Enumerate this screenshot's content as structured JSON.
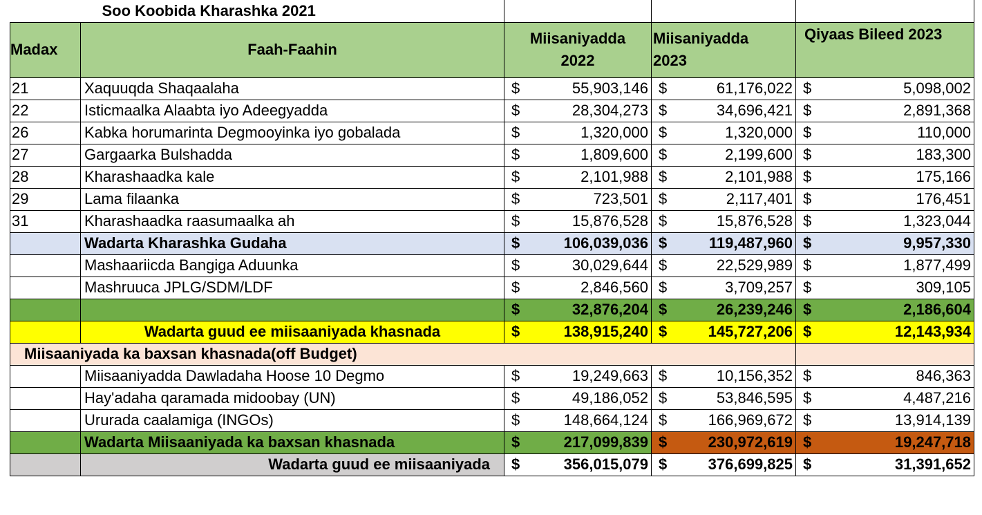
{
  "title": "Soo Koobida Kharashka 2021",
  "headers": {
    "madax": "Madax",
    "faah": "Faah-Faahin",
    "m2022": "Miisaniyadda 2022",
    "m2023": "Miisaniyadda 2023",
    "qiyaas": "Qiyaas Bileed 2023"
  },
  "currency": "$",
  "rows": [
    {
      "code": "21",
      "desc": "Xaquuqda Shaqaalaha",
      "v2022": "55,903,146",
      "v2023": "61,176,022",
      "q": "5,098,002"
    },
    {
      "code": "22",
      "desc": "Isticmaalka Alaabta iyo Adeegyadda",
      "v2022": "28,304,273",
      "v2023": "34,696,421",
      "q": "2,891,368"
    },
    {
      "code": "26",
      "desc": "Kabka horumarinta Degmooyinka iyo gobalada",
      "v2022": "1,320,000",
      "v2023": "1,320,000",
      "q": "110,000"
    },
    {
      "code": "27",
      "desc": "Gargaarka Bulshadda",
      "v2022": "1,809,600",
      "v2023": "2,199,600",
      "q": "183,300"
    },
    {
      "code": "28",
      "desc": "Kharashaadka kale",
      "v2022": "2,101,988",
      "v2023": "2,101,988",
      "q": "175,166"
    },
    {
      "code": "29",
      "desc": "Lama filaanka",
      "v2022": "723,501",
      "v2023": "2,117,401",
      "q": "176,451"
    },
    {
      "code": "31",
      "desc": "Kharashaadka raasumaalka ah",
      "v2022": "15,876,528",
      "v2023": "15,876,528",
      "q": "1,323,044"
    }
  ],
  "total_internal": {
    "desc": "Wadarta Kharashka Gudaha",
    "v2022": "106,039,036",
    "v2023": "119,487,960",
    "q": "9,957,330"
  },
  "projects": [
    {
      "desc": "Mashaariicda Bangiga Aduunka",
      "v2022": "30,029,644",
      "v2023": "22,529,989",
      "q": "1,877,499"
    },
    {
      "desc": "Mashruuca JPLG/SDM/LDF",
      "v2022": "2,846,560",
      "v2023": "3,709,257",
      "q": "309,105"
    }
  ],
  "total_projects": {
    "v2022": "32,876,204",
    "v2023": "26,239,246",
    "q": "2,186,604"
  },
  "total_treasury": {
    "desc": "Wadarta guud ee miisaaniyada khasnada",
    "v2022": "138,915,240",
    "v2023": "145,727,206",
    "q": "12,143,934"
  },
  "off_budget_title": "Miisaaniyada ka baxsan khasnada(off Budget)",
  "off_budget": [
    {
      "desc": "Miisaaniyadda Dawladaha Hoose 10 Degmo",
      "v2022": "19,249,663",
      "v2023": "10,156,352",
      "q": "846,363"
    },
    {
      "desc": "Hay'adaha qaramada midoobay (UN)",
      "v2022": "49,186,052",
      "v2023": "53,846,595",
      "q": "4,487,216"
    },
    {
      "desc": "Ururada caalamiga (INGOs)",
      "v2022": "148,664,124",
      "v2023": "166,969,672",
      "q": "13,914,139"
    }
  ],
  "total_off_budget": {
    "desc": "Wadarta Miisaaniyada ka baxsan khasnada",
    "v2022": "217,099,839",
    "v2023": "230,972,619",
    "q": "19,247,718"
  },
  "grand_total": {
    "desc": "Wadarta guud ee miisaaniyada",
    "v2022": "356,015,079",
    "v2023": "376,699,825",
    "q": "31,391,652"
  },
  "colors": {
    "header": "#a9d08e",
    "blue": "#d9e1f2",
    "green": "#70ad47",
    "yellow": "#ffff00",
    "peach": "#fce4d6",
    "orange": "#c55a11",
    "grey": "#d0cece"
  }
}
